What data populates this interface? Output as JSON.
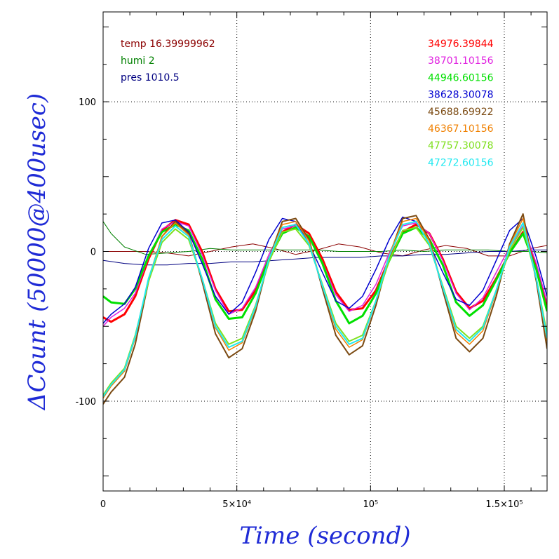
{
  "chart_data": {
    "type": "line",
    "title": "",
    "xlabel": "Time (second)",
    "ylabel": "ΔCount (50000@400usec)",
    "xlim": [
      0,
      166000
    ],
    "ylim": [
      -160,
      160
    ],
    "grid": true,
    "colors": {
      "axis_title": "#1f2bd6",
      "grid": "#000000"
    },
    "x_ticks": [
      {
        "value": 0,
        "label": "0"
      },
      {
        "value": 50000,
        "label": "5×10⁴"
      },
      {
        "value": 100000,
        "label": "10⁵"
      },
      {
        "value": 150000,
        "label": "1.5×10⁵"
      }
    ],
    "y_ticks": [
      {
        "value": 100,
        "label": "100"
      },
      {
        "value": 0,
        "label": "0"
      },
      {
        "value": -100,
        "label": "-100"
      }
    ],
    "env_legend": [
      {
        "text": "temp 16.39999962",
        "color": "#8b0000"
      },
      {
        "text": "humi 2",
        "color": "#008000"
      },
      {
        "text": "pres 1010.5",
        "color": "#000080"
      }
    ],
    "series": [
      {
        "name": "34976.39844",
        "color": "#ff0000",
        "width": 3,
        "x": [
          0,
          3000,
          8000,
          12000,
          17000,
          22000,
          27000,
          32000,
          37000,
          42000,
          47000,
          52000,
          57000,
          62000,
          67000,
          72000,
          77000,
          82000,
          87000,
          92000,
          97000,
          102000,
          107000,
          112000,
          117000,
          122000,
          127000,
          132000,
          137000,
          142000,
          147000,
          152000,
          157000,
          162000,
          166000
        ],
        "y": [
          -44,
          -47,
          -42,
          -30,
          -5,
          14,
          21,
          18,
          0,
          -25,
          -40,
          -39,
          -26,
          -5,
          13,
          18,
          12,
          -5,
          -27,
          -39,
          -38,
          -26,
          -5,
          13,
          18,
          12,
          -5,
          -27,
          -38,
          -33,
          -18,
          -1,
          13,
          -10,
          -36
        ]
      },
      {
        "name": "38701.10156",
        "color": "#e020e0",
        "width": 1.5,
        "x": [
          0,
          3000,
          8000,
          12000,
          17000,
          22000,
          27000,
          32000,
          37000,
          42000,
          47000,
          52000,
          57000,
          62000,
          67000,
          72000,
          77000,
          82000,
          87000,
          92000,
          97000,
          102000,
          107000,
          112000,
          117000,
          122000,
          127000,
          132000,
          137000,
          142000,
          147000,
          152000,
          157000,
          162000,
          166000
        ],
        "y": [
          -50,
          -44,
          -38,
          -28,
          -4,
          15,
          20,
          17,
          -2,
          -26,
          -42,
          -38,
          -24,
          -2,
          15,
          17,
          10,
          -7,
          -29,
          -40,
          -36,
          -22,
          -1,
          17,
          19,
          12,
          -6,
          -28,
          -39,
          -31,
          -14,
          3,
          17,
          -8,
          -34
        ]
      },
      {
        "name": "44946.60156",
        "color": "#00e000",
        "width": 3,
        "x": [
          0,
          3000,
          8000,
          12000,
          17000,
          22000,
          27000,
          32000,
          37000,
          42000,
          47000,
          52000,
          57000,
          62000,
          67000,
          72000,
          77000,
          82000,
          87000,
          92000,
          97000,
          102000,
          107000,
          112000,
          117000,
          122000,
          127000,
          132000,
          137000,
          142000,
          147000,
          152000,
          157000,
          162000,
          166000
        ],
        "y": [
          -30,
          -34,
          -35,
          -25,
          -3,
          13,
          18,
          14,
          -5,
          -32,
          -45,
          -44,
          -28,
          -5,
          12,
          16,
          10,
          -8,
          -33,
          -48,
          -43,
          -28,
          -6,
          12,
          16,
          8,
          -9,
          -34,
          -43,
          -36,
          -19,
          -1,
          12,
          -12,
          -40
        ]
      },
      {
        "name": "38628.30078",
        "color": "#0000d0",
        "width": 1.5,
        "x": [
          0,
          3000,
          8000,
          12000,
          17000,
          22000,
          27000,
          32000,
          37000,
          42000,
          47000,
          52000,
          57000,
          62000,
          67000,
          72000,
          77000,
          82000,
          87000,
          92000,
          97000,
          102000,
          107000,
          112000,
          117000,
          122000,
          127000,
          132000,
          137000,
          142000,
          147000,
          152000,
          157000,
          162000,
          166000
        ],
        "y": [
          -48,
          -42,
          -35,
          -24,
          2,
          19,
          21,
          13,
          -8,
          -30,
          -42,
          -34,
          -14,
          8,
          22,
          20,
          5,
          -14,
          -33,
          -38,
          -30,
          -12,
          8,
          23,
          20,
          5,
          -14,
          -32,
          -36,
          -26,
          -6,
          14,
          22,
          -4,
          -30
        ]
      },
      {
        "name": "45688.69922",
        "color": "#7b4a12",
        "width": 2,
        "x": [
          0,
          3000,
          8000,
          12000,
          17000,
          22000,
          27000,
          32000,
          37000,
          42000,
          47000,
          52000,
          57000,
          62000,
          67000,
          72000,
          77000,
          82000,
          87000,
          92000,
          97000,
          102000,
          107000,
          112000,
          117000,
          122000,
          127000,
          132000,
          137000,
          142000,
          147000,
          152000,
          157000,
          162000,
          166000
        ],
        "y": [
          -102,
          -94,
          -84,
          -62,
          -20,
          10,
          20,
          12,
          -20,
          -55,
          -71,
          -65,
          -40,
          -5,
          20,
          22,
          8,
          -25,
          -56,
          -69,
          -63,
          -36,
          -3,
          22,
          24,
          8,
          -26,
          -58,
          -67,
          -58,
          -30,
          5,
          25,
          -20,
          -65
        ]
      },
      {
        "name": "46367.10156",
        "color": "#f08000",
        "width": 1.5,
        "x": [
          0,
          3000,
          8000,
          12000,
          17000,
          22000,
          27000,
          32000,
          37000,
          42000,
          47000,
          52000,
          57000,
          62000,
          67000,
          72000,
          77000,
          82000,
          87000,
          92000,
          97000,
          102000,
          107000,
          112000,
          117000,
          122000,
          127000,
          132000,
          137000,
          142000,
          147000,
          152000,
          157000,
          162000,
          166000
        ],
        "y": [
          -98,
          -90,
          -80,
          -58,
          -18,
          10,
          19,
          11,
          -18,
          -51,
          -66,
          -61,
          -38,
          -5,
          18,
          20,
          7,
          -23,
          -52,
          -64,
          -59,
          -33,
          -2,
          20,
          22,
          7,
          -24,
          -54,
          -62,
          -53,
          -27,
          4,
          22,
          -18,
          -60
        ]
      },
      {
        "name": "47757.30078",
        "color": "#80e020",
        "width": 2,
        "x": [
          0,
          3000,
          8000,
          12000,
          17000,
          22000,
          27000,
          32000,
          37000,
          42000,
          47000,
          52000,
          57000,
          62000,
          67000,
          72000,
          77000,
          82000,
          87000,
          92000,
          97000,
          102000,
          107000,
          112000,
          117000,
          122000,
          127000,
          132000,
          137000,
          142000,
          147000,
          152000,
          157000,
          162000,
          166000
        ],
        "y": [
          -96,
          -88,
          -78,
          -56,
          -20,
          6,
          15,
          8,
          -18,
          -48,
          -62,
          -58,
          -36,
          -7,
          13,
          15,
          4,
          -22,
          -48,
          -60,
          -56,
          -33,
          -6,
          14,
          16,
          4,
          -23,
          -50,
          -58,
          -50,
          -26,
          1,
          16,
          -18,
          -55
        ]
      },
      {
        "name": "47272.60156",
        "color": "#20e8f0",
        "width": 2,
        "x": [
          0,
          3000,
          8000,
          12000,
          17000,
          22000,
          27000,
          32000,
          37000,
          42000,
          47000,
          52000,
          57000,
          62000,
          67000,
          72000,
          77000,
          82000,
          87000,
          92000,
          97000,
          102000,
          107000,
          112000,
          117000,
          122000,
          127000,
          132000,
          137000,
          142000,
          147000,
          152000,
          157000,
          162000,
          166000
        ],
        "y": [
          -97,
          -89,
          -79,
          -57,
          -18,
          8,
          17,
          10,
          -18,
          -50,
          -64,
          -60,
          -37,
          -5,
          16,
          18,
          5,
          -23,
          -50,
          -62,
          -58,
          -33,
          -3,
          18,
          20,
          5,
          -24,
          -52,
          -60,
          -51,
          -26,
          3,
          19,
          -18,
          -58
        ]
      }
    ],
    "env_series": [
      {
        "name": "temp",
        "color": "#8b0000",
        "width": 1,
        "x": [
          0,
          8000,
          16000,
          24000,
          32000,
          40000,
          48000,
          56000,
          64000,
          72000,
          80000,
          88000,
          96000,
          104000,
          112000,
          120000,
          128000,
          136000,
          144000,
          152000,
          160000,
          166000
        ],
        "y": [
          0,
          0,
          0,
          -1,
          -3,
          0,
          3,
          5,
          2,
          -2,
          1,
          5,
          3,
          -1,
          -3,
          1,
          4,
          2,
          -3,
          -3,
          2,
          4
        ]
      },
      {
        "name": "humi",
        "color": "#008000",
        "width": 1,
        "x": [
          0,
          3000,
          8000,
          16000,
          24000,
          32000,
          40000,
          48000,
          56000,
          64000,
          72000,
          80000,
          88000,
          96000,
          104000,
          112000,
          120000,
          128000,
          136000,
          144000,
          152000,
          160000,
          166000
        ],
        "y": [
          20,
          12,
          3,
          -2,
          -1,
          0,
          2,
          1,
          1,
          1,
          1,
          1,
          0,
          0,
          0,
          1,
          0,
          1,
          1,
          1,
          0,
          0,
          -1
        ]
      },
      {
        "name": "pres",
        "color": "#000080",
        "width": 1,
        "x": [
          0,
          8000,
          16000,
          24000,
          32000,
          40000,
          48000,
          56000,
          64000,
          72000,
          80000,
          88000,
          96000,
          104000,
          112000,
          120000,
          128000,
          136000,
          144000,
          152000,
          160000,
          166000
        ],
        "y": [
          -6,
          -8,
          -9,
          -9,
          -8,
          -8,
          -7,
          -7,
          -6,
          -5,
          -4,
          -4,
          -4,
          -3,
          -3,
          -2,
          -2,
          -1,
          0,
          0,
          1,
          1
        ]
      }
    ]
  }
}
